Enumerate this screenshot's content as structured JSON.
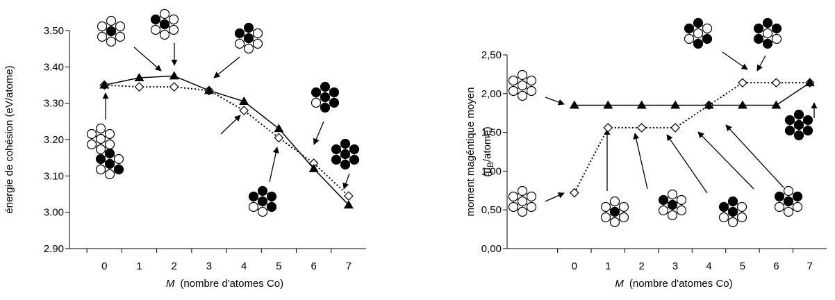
{
  "chart_data": [
    {
      "type": "line",
      "ylabel": "énergie de cohésion (eV/atome)",
      "xlabel_var": "M",
      "xlabel": "(nombre d'atomes Co)",
      "x": [
        0,
        1,
        2,
        3,
        4,
        5,
        6,
        7
      ],
      "xlim": [
        -1,
        7.5
      ],
      "xticks": [
        0,
        1,
        2,
        3,
        4,
        5,
        6,
        7
      ],
      "ylim": [
        2.9,
        3.5
      ],
      "yticks": [
        {
          "value": 2.9,
          "label": "2.90"
        },
        {
          "value": 3.0,
          "label": "3.00"
        },
        {
          "value": 3.1,
          "label": "3.10"
        },
        {
          "value": 3.2,
          "label": "3.20"
        },
        {
          "value": 3.3,
          "label": "3.30"
        },
        {
          "value": 3.4,
          "label": "3.40"
        },
        {
          "value": 3.5,
          "label": "3.50"
        }
      ],
      "series": [
        {
          "marker": "triangle",
          "dash": "solid",
          "color": "#000000",
          "values": [
            3.35,
            3.37,
            3.375,
            3.335,
            3.305,
            3.23,
            3.12,
            3.02
          ]
        },
        {
          "marker": "diamond",
          "dash": "dotted",
          "color": "#000000",
          "values": [
            3.35,
            3.345,
            3.345,
            3.335,
            3.28,
            3.205,
            3.135,
            3.045
          ]
        }
      ]
    },
    {
      "type": "line",
      "ylabel": "moment magéntique moyen",
      "ylabel_unit": [
        "(μ",
        "B",
        "/atome)"
      ],
      "xlabel_var": "M",
      "xlabel": "(nombre d'atomes Co)",
      "x": [
        0,
        1,
        2,
        3,
        4,
        5,
        6,
        7
      ],
      "xlim": [
        -2,
        7.5
      ],
      "xticks": [
        0,
        1,
        2,
        3,
        4,
        5,
        6,
        7
      ],
      "ylim": [
        0,
        2.5
      ],
      "yticks": [
        {
          "value": 0,
          "label": "0,00"
        },
        {
          "value": 0.5,
          "label": "0,50"
        },
        {
          "value": 1.0,
          "label": "1,00"
        },
        {
          "value": 1.5,
          "label": "1,50"
        },
        {
          "value": 2.0,
          "label": "2,00"
        },
        {
          "value": 2.5,
          "label": "2,50"
        }
      ],
      "series": [
        {
          "marker": "triangle",
          "dash": "solid",
          "color": "#000000",
          "values": [
            1.85,
            1.85,
            1.85,
            1.85,
            1.85,
            1.85,
            1.85,
            2.14
          ]
        },
        {
          "marker": "diamond",
          "dash": "dotted",
          "color": "#000000",
          "values": [
            0.72,
            1.56,
            1.56,
            1.56,
            1.85,
            2.14,
            2.14,
            2.14
          ]
        }
      ]
    }
  ]
}
